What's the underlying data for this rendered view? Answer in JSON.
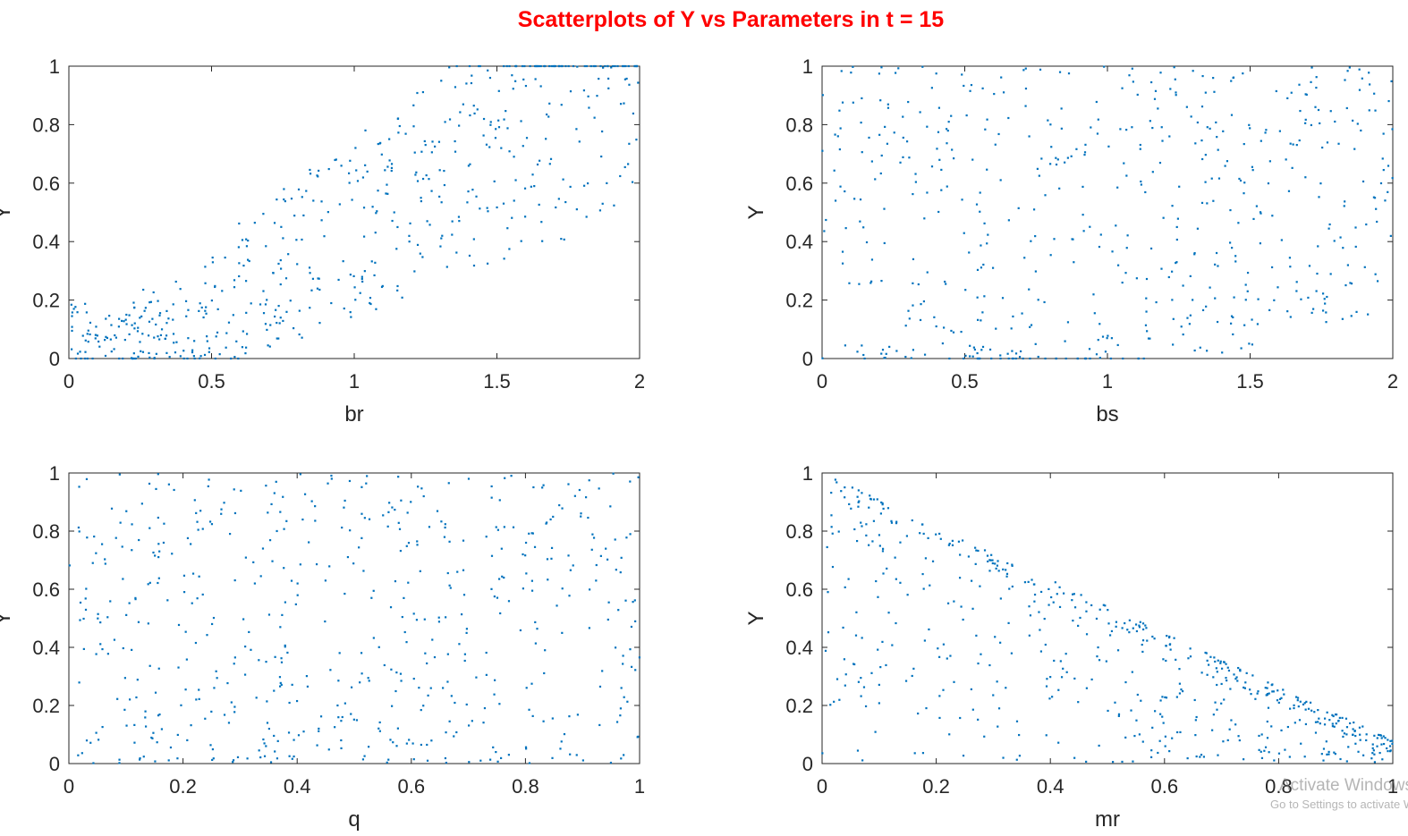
{
  "title": "Scatterplots of Y vs Parameters in t = 15",
  "watermark": {
    "line1": "Activate Windows",
    "line2": "Go to Settings to activate Windows."
  },
  "colors": {
    "title": "#ff0000",
    "points": "#0072bd",
    "axes": "#262626"
  },
  "chart_data": [
    {
      "type": "scatter",
      "xlabel": "br",
      "ylabel": "Y",
      "xlim": [
        0,
        2
      ],
      "ylim": [
        0,
        1
      ],
      "xticks": [
        0,
        0.5,
        1,
        1.5,
        2
      ],
      "xtick_labels": [
        "0",
        "0.5",
        "1",
        "1.5",
        "2"
      ],
      "yticks": [
        0,
        0.2,
        0.4,
        0.6,
        0.8,
        1
      ],
      "ytick_labels": [
        "0",
        "0.2",
        "0.4",
        "0.6",
        "0.8",
        "1"
      ],
      "pattern": "positive-trend",
      "grid": false,
      "legend": "none"
    },
    {
      "type": "scatter",
      "xlabel": "bs",
      "ylabel": "Y",
      "xlim": [
        0,
        2
      ],
      "ylim": [
        0,
        1
      ],
      "xticks": [
        0,
        0.5,
        1,
        1.5,
        2
      ],
      "xtick_labels": [
        "0",
        "0.5",
        "1",
        "1.5",
        "2"
      ],
      "yticks": [
        0,
        0.2,
        0.4,
        0.6,
        0.8,
        1
      ],
      "ytick_labels": [
        "0",
        "0.2",
        "0.4",
        "0.6",
        "0.8",
        "1"
      ],
      "pattern": "v-shaped",
      "grid": false,
      "legend": "none"
    },
    {
      "type": "scatter",
      "xlabel": "q",
      "ylabel": "Y",
      "xlim": [
        0,
        1
      ],
      "ylim": [
        0,
        1
      ],
      "xticks": [
        0,
        0.2,
        0.4,
        0.6,
        0.8,
        1
      ],
      "xtick_labels": [
        "0",
        "0.2",
        "0.4",
        "0.6",
        "0.8",
        "1"
      ],
      "yticks": [
        0,
        0.2,
        0.4,
        0.6,
        0.8,
        1
      ],
      "ytick_labels": [
        "0",
        "0.2",
        "0.4",
        "0.6",
        "0.8",
        "1"
      ],
      "pattern": "uniform",
      "grid": false,
      "legend": "none"
    },
    {
      "type": "scatter",
      "xlabel": "mr",
      "ylabel": "Y",
      "xlim": [
        0,
        1
      ],
      "ylim": [
        0,
        1
      ],
      "xticks": [
        0,
        0.2,
        0.4,
        0.6,
        0.8,
        1
      ],
      "xtick_labels": [
        "0",
        "0.2",
        "0.4",
        "0.6",
        "0.8",
        "1"
      ],
      "yticks": [
        0,
        0.2,
        0.4,
        0.6,
        0.8,
        1
      ],
      "ytick_labels": [
        "0",
        "0.2",
        "0.4",
        "0.6",
        "0.8",
        "1"
      ],
      "pattern": "upper-bound-decreasing",
      "grid": false,
      "legend": "none"
    }
  ]
}
